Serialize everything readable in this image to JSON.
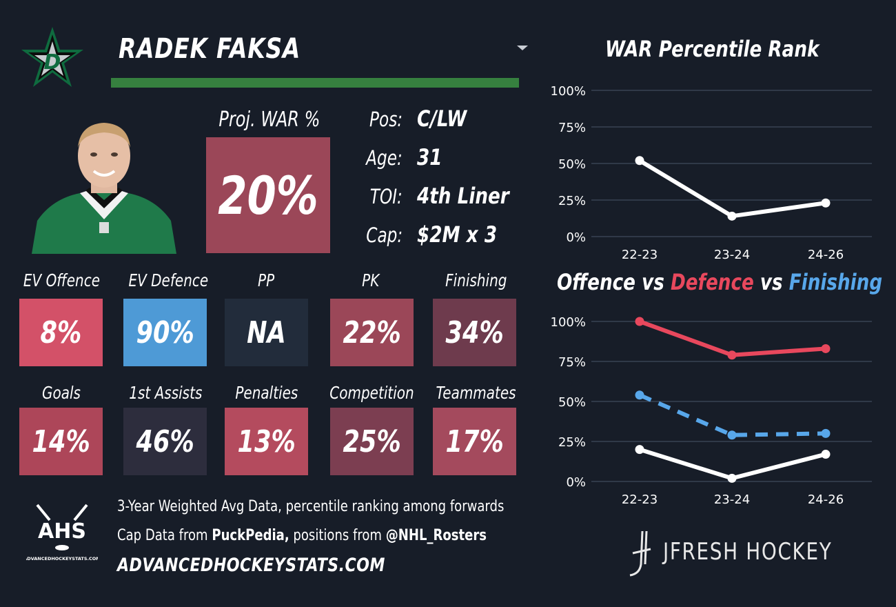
{
  "player": {
    "name": "RADEK FAKSA",
    "team_color": "#36803f"
  },
  "proj_war": {
    "label": "Proj. WAR %",
    "value": "20%",
    "color": "#9b4758"
  },
  "info": [
    {
      "label": "Pos:",
      "value": "C/LW"
    },
    {
      "label": "Age:",
      "value": "31"
    },
    {
      "label": "TOI:",
      "value": "4th Liner"
    },
    {
      "label": "Cap:",
      "value": "$2M x 3"
    }
  ],
  "metrics_row1": [
    {
      "label": "EV Offence",
      "value": "8%",
      "color": "#d35168"
    },
    {
      "label": "EV Defence",
      "value": "90%",
      "color": "#4e9ad6"
    },
    {
      "label": "PP",
      "value": "NA",
      "color": "#222c3b"
    },
    {
      "label": "PK",
      "value": "22%",
      "color": "#9b4758"
    },
    {
      "label": "Finishing",
      "value": "34%",
      "color": "#6e3b4d"
    }
  ],
  "metrics_row2": [
    {
      "label": "Goals",
      "value": "14%",
      "color": "#ad4659"
    },
    {
      "label": "1st Assists",
      "value": "46%",
      "color": "#2d2d3d"
    },
    {
      "label": "Penalties",
      "value": "13%",
      "color": "#b44b5e"
    },
    {
      "label": "Competition",
      "value": "25%",
      "color": "#7c3e51"
    },
    {
      "label": "Teammates",
      "value": "17%",
      "color": "#a44a5d"
    }
  ],
  "footer": {
    "line1": "3-Year Weighted Avg Data, percentile ranking among forwards",
    "line2_a": "Cap Data from ",
    "line2_b": "PuckPedia,",
    "line2_c": " positions from ",
    "line2_d": "@NHL_Rosters",
    "site": "ADVANCEDHOCKEYSTATS.COM",
    "ahs_logo": "AHS",
    "ahs_small": "ADVANCEDHOCKEYSTATS.COM",
    "jfresh": "JFRESH HOCKEY"
  },
  "icons": [
    "dallas-stars-logo",
    "ahs-logo",
    "jfresh-logo",
    "dropdown-icon"
  ],
  "chart_data": [
    {
      "type": "line",
      "title": "WAR Percentile Rank",
      "categories": [
        "22-23",
        "23-24",
        "24-26"
      ],
      "yticks": [
        "0%",
        "25%",
        "50%",
        "75%",
        "100%"
      ],
      "ylim": [
        0,
        100
      ],
      "grid": true,
      "series": [
        {
          "values": [
            52,
            14,
            23
          ],
          "color": "#ffffff",
          "dashed": false
        }
      ]
    },
    {
      "type": "line",
      "title_parts": [
        {
          "text": "Offence",
          "color": "#ffffff"
        },
        {
          "text": " vs ",
          "color": "#ffffff"
        },
        {
          "text": "Defence",
          "color": "#e8485d"
        },
        {
          "text": " vs ",
          "color": "#ffffff"
        },
        {
          "text": "Finishing",
          "color": "#58a7ea"
        }
      ],
      "categories": [
        "22-23",
        "23-24",
        "24-26"
      ],
      "yticks": [
        "0%",
        "25%",
        "50%",
        "75%",
        "100%"
      ],
      "ylim": [
        0,
        100
      ],
      "grid": true,
      "series": [
        {
          "values": [
            100,
            79,
            83
          ],
          "color": "#e8485d",
          "dashed": false
        },
        {
          "values": [
            54,
            29,
            30
          ],
          "color": "#58a7ea",
          "dashed": true
        },
        {
          "values": [
            20,
            2,
            17
          ],
          "color": "#ffffff",
          "dashed": false
        }
      ]
    }
  ]
}
